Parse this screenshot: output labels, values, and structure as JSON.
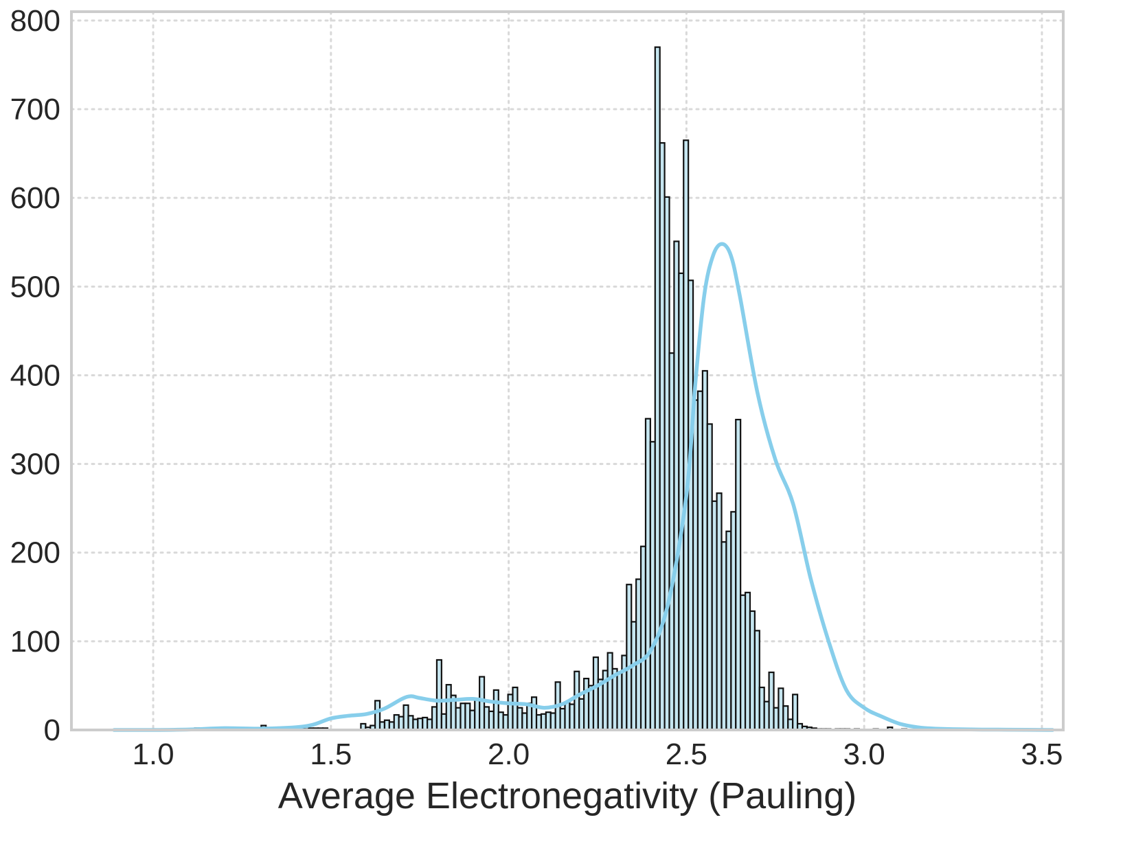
{
  "chart_data": {
    "type": "histogram",
    "title": "",
    "xlabel": "Average Electronegativity (Pauling)",
    "ylabel": "",
    "xlim": [
      0.77,
      3.56
    ],
    "ylim": [
      0,
      810
    ],
    "xticks": [
      1.0,
      1.5,
      2.0,
      2.5,
      3.0,
      3.5
    ],
    "xtick_labels": [
      "1.0",
      "1.5",
      "2.0",
      "2.5",
      "3.0",
      "3.5"
    ],
    "yticks": [
      0,
      100,
      200,
      300,
      400,
      500,
      600,
      700,
      800
    ],
    "ytick_labels": [
      "0",
      "100",
      "200",
      "300",
      "400",
      "500",
      "600",
      "700",
      "800"
    ],
    "grid": true,
    "colors": {
      "bar_fill": "#c6e6f0",
      "bar_edge": "#111111",
      "kde_line": "#87ceeb"
    },
    "bins": {
      "x_start": 0.89,
      "bin_width": 0.01335,
      "counts": [
        1,
        1,
        1,
        0,
        1,
        1,
        1,
        0,
        1,
        0,
        1,
        1,
        1,
        0,
        1,
        1,
        1,
        2,
        2,
        2,
        1,
        1,
        1,
        0,
        1,
        0,
        0,
        0,
        0,
        0,
        1,
        5,
        0,
        0,
        0,
        1,
        1,
        1,
        1,
        1,
        1,
        2,
        2,
        2,
        2,
        0,
        0,
        0,
        0,
        0,
        0,
        0,
        7,
        3,
        5,
        33,
        9,
        11,
        9,
        17,
        15,
        28,
        16,
        12,
        13,
        14,
        12,
        26,
        79,
        18,
        51,
        39,
        25,
        30,
        30,
        22,
        34,
        60,
        26,
        21,
        45,
        20,
        17,
        40,
        48,
        25,
        19,
        30,
        37,
        17,
        18,
        20,
        19,
        54,
        24,
        31,
        29,
        66,
        35,
        58,
        50,
        82,
        57,
        67,
        87,
        69,
        64,
        84,
        164,
        122,
        170,
        207,
        351,
        325,
        770,
        662,
        601,
        425,
        551,
        515,
        665,
        507,
        372,
        382,
        405,
        345,
        258,
        267,
        212,
        224,
        246,
        350,
        152,
        155,
        134,
        112,
        48,
        32,
        65,
        25,
        47,
        27,
        12,
        40,
        7,
        4,
        3,
        2,
        1,
        1,
        1,
        0,
        1,
        1,
        1,
        0,
        1,
        0,
        0,
        0,
        1,
        0,
        0,
        3,
        0,
        0,
        1,
        0,
        0,
        1,
        0,
        1,
        0,
        0,
        0,
        0
      ]
    },
    "kde": {
      "x": [
        0.89,
        1.0,
        1.1,
        1.2,
        1.3,
        1.4,
        1.45,
        1.5,
        1.55,
        1.6,
        1.65,
        1.7,
        1.725,
        1.75,
        1.8,
        1.85,
        1.9,
        1.95,
        2.0,
        2.05,
        2.1,
        2.15,
        2.2,
        2.25,
        2.3,
        2.35,
        2.4,
        2.45,
        2.5,
        2.525,
        2.55,
        2.575,
        2.6,
        2.625,
        2.65,
        2.7,
        2.75,
        2.8,
        2.85,
        2.9,
        2.95,
        3.0,
        3.05,
        3.1,
        3.15,
        3.2,
        3.3,
        3.4,
        3.53
      ],
      "y": [
        0,
        0,
        0.5,
        2,
        1.5,
        3,
        6,
        13,
        16,
        18,
        24,
        35,
        38,
        36,
        33,
        34,
        35,
        32,
        30,
        29,
        25,
        29,
        40,
        50,
        62,
        73,
        90,
        145,
        265,
        390,
        490,
        535,
        548,
        535,
        490,
        380,
        305,
        255,
        170,
        100,
        45,
        25,
        15,
        7,
        3,
        1.5,
        0.6,
        0.3,
        0
      ]
    }
  }
}
